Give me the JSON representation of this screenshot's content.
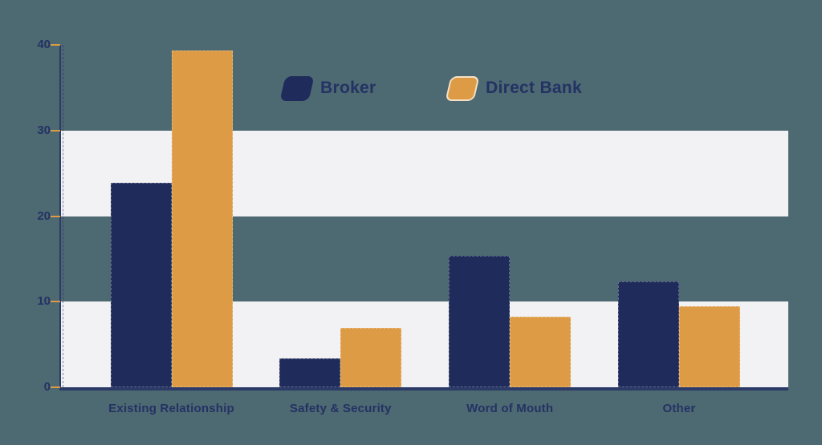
{
  "background_color": "#4d6971",
  "legend": {
    "position": "top-center",
    "items": [
      {
        "label": "Broker",
        "swatch_color": "#1f2b5b"
      },
      {
        "label": "Direct Bank",
        "swatch_color": "#dd9b45"
      }
    ]
  },
  "chart_data": {
    "type": "bar",
    "title": "",
    "xlabel": "",
    "ylabel": "",
    "categories": [
      "Existing Relationship",
      "Safety & Security",
      "Word of Mouth",
      "Other"
    ],
    "series": [
      {
        "name": "Broker",
        "color": "#1f2b5b",
        "values": [
          23.9,
          3.4,
          15.4,
          12.4
        ]
      },
      {
        "name": "Direct Bank",
        "color": "#dd9b45",
        "values": [
          39.3,
          6.9,
          8.2,
          9.5
        ]
      }
    ],
    "ylim": [
      0,
      40
    ],
    "yticks": [
      0,
      10,
      20,
      30,
      40
    ],
    "grid": "banded-stripes",
    "band_intervals": [
      [
        0,
        10
      ],
      [
        20,
        30
      ]
    ],
    "band_color": "#f2f1f4",
    "axis_color": "#2b3a66",
    "tick_dash_color": "#dd9b45",
    "label_color": "#243264",
    "legend_position": "top-center"
  }
}
